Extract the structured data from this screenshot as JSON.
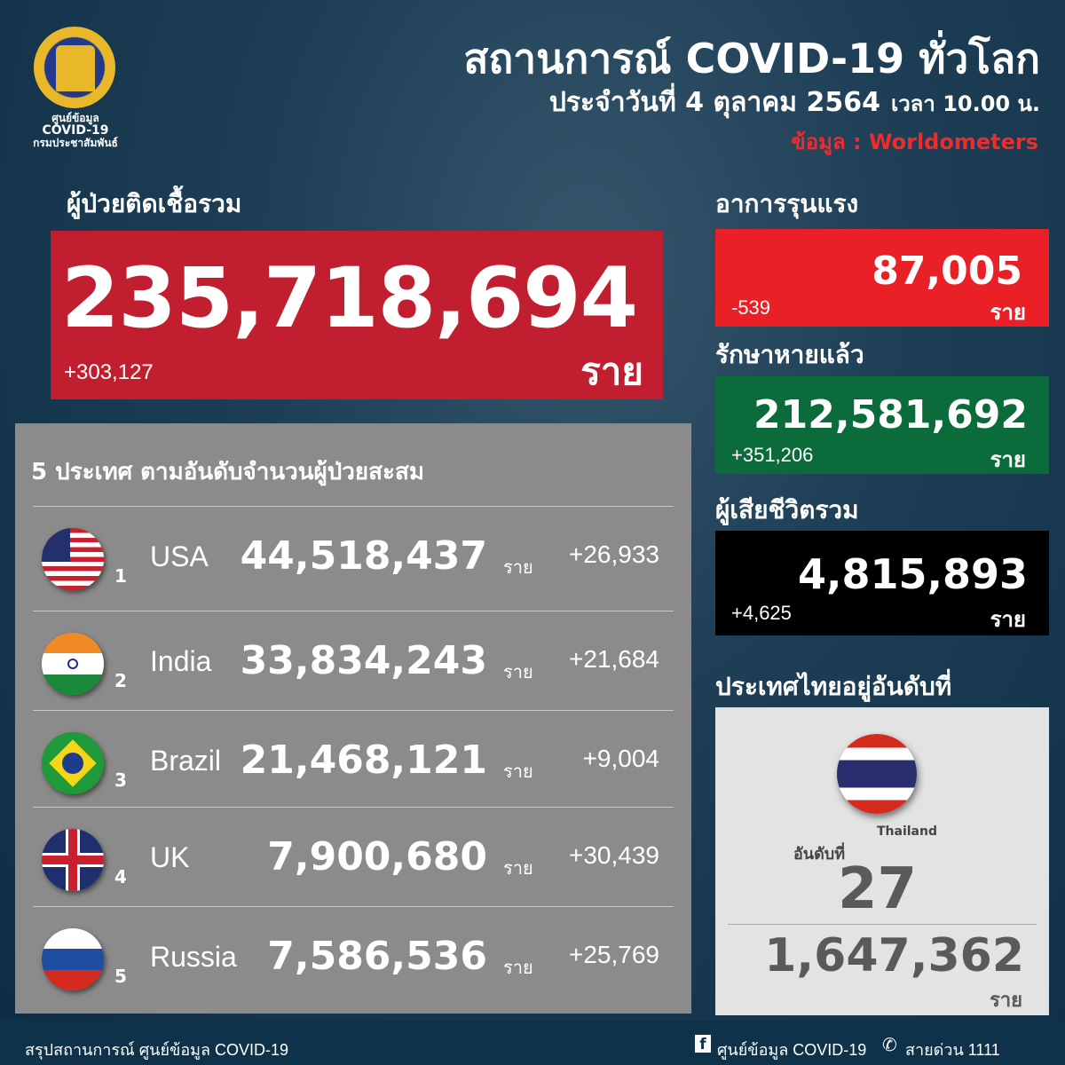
{
  "header": {
    "logo_text": [
      "ศูนย์ข้อมูล",
      "COVID-19",
      "กรมประชาสัมพันธ์"
    ],
    "title": "สถานการณ์ COVID-19 ทั่วโลก",
    "date": "ประจำวันที่ 4 ตุลาคม 2564",
    "time": "เวลา 10.00 น.",
    "source": "ข้อมูล : Worldometers"
  },
  "total": {
    "label": "ผู้ป่วยติดเชื้อรวม",
    "value": "235,718,694",
    "delta": "+303,127",
    "unit": "ราย"
  },
  "severe": {
    "label": "อาการรุนแรง",
    "value": "87,005",
    "delta": "-539",
    "unit": "ราย"
  },
  "recovered": {
    "label": "รักษาหายแล้ว",
    "value": "212,581,692",
    "delta": "+351,206",
    "unit": "ราย"
  },
  "deaths": {
    "label": "ผู้เสียชีวิตรวม",
    "value": "4,815,893",
    "delta": "+4,625",
    "unit": "ราย"
  },
  "top5": {
    "title": "5 ประเทศ ตามอันดับจำนวนผู้ป่วยสะสม",
    "unit": "ราย",
    "countries": [
      {
        "rank": "1",
        "name": "USA",
        "value": "44,518,437",
        "delta": "+26,933"
      },
      {
        "rank": "2",
        "name": "India",
        "value": "33,834,243",
        "delta": "+21,684"
      },
      {
        "rank": "3",
        "name": "Brazil",
        "value": "21,468,121",
        "delta": "+9,004"
      },
      {
        "rank": "4",
        "name": "UK",
        "value": "7,900,680",
        "delta": "+30,439"
      },
      {
        "rank": "5",
        "name": "Russia",
        "value": "7,586,536",
        "delta": "+25,769"
      }
    ]
  },
  "thailand": {
    "label": "ประเทศไทยอยู่อันดับที่",
    "country": "Thailand",
    "rank_label": "อันดับที่",
    "rank": "27",
    "value": "1,647,362",
    "unit": "ราย"
  },
  "footer": {
    "left": "สรุปสถานการณ์ ศูนย์ข้อมูล COVID-19",
    "facebook": "ศูนย์ข้อมูล COVID-19",
    "hotline": "สายด่วน 1111"
  },
  "colors": {
    "background": "#0f2f47",
    "total": "#c11f2f",
    "severe": "#ea2027",
    "recovered": "#0c6b3a",
    "deaths": "#000000",
    "panel": "#8b8b8b",
    "source": "#ef2b2b"
  }
}
